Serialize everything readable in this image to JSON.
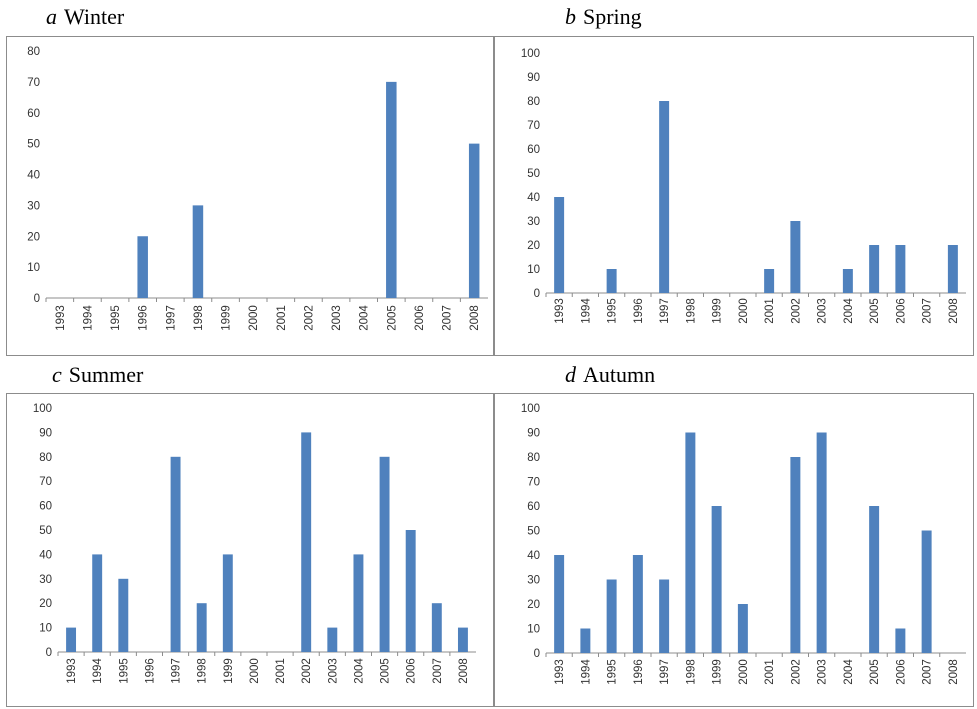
{
  "chart_data": [
    {
      "type": "bar",
      "panel_letter": "a",
      "title": "Winter",
      "categories": [
        "1993",
        "1994",
        "1995",
        "1996",
        "1997",
        "1998",
        "1999",
        "2000",
        "2001",
        "2002",
        "2003",
        "2004",
        "2005",
        "2006",
        "2007",
        "2008"
      ],
      "values": [
        0,
        0,
        0,
        20,
        0,
        30,
        0,
        0,
        0,
        0,
        0,
        0,
        70,
        0,
        0,
        50
      ],
      "ylim": [
        0,
        80
      ],
      "yticks": [
        0,
        10,
        20,
        30,
        40,
        50,
        60,
        70,
        80
      ],
      "grid": false,
      "bar_color": "#4f81bd"
    },
    {
      "type": "bar",
      "panel_letter": "b",
      "title": "Spring",
      "categories": [
        "1993",
        "1994",
        "1995",
        "1996",
        "1997",
        "1998",
        "1999",
        "2000",
        "2001",
        "2002",
        "2003",
        "2004",
        "2005",
        "2006",
        "2007",
        "2008"
      ],
      "values": [
        40,
        0,
        10,
        0,
        80,
        0,
        0,
        0,
        10,
        30,
        0,
        10,
        20,
        20,
        0,
        20
      ],
      "ylim": [
        0,
        100
      ],
      "yticks": [
        0,
        10,
        20,
        30,
        40,
        50,
        60,
        70,
        80,
        90,
        100
      ],
      "grid": false,
      "bar_color": "#4f81bd"
    },
    {
      "type": "bar",
      "panel_letter": "c",
      "title": "Summer",
      "categories": [
        "1993",
        "1994",
        "1995",
        "1996",
        "1997",
        "1998",
        "1999",
        "2000",
        "2001",
        "2002",
        "2003",
        "2004",
        "2005",
        "2006",
        "2007",
        "2008"
      ],
      "values": [
        10,
        40,
        30,
        0,
        80,
        20,
        40,
        0,
        0,
        90,
        10,
        40,
        80,
        50,
        20,
        10
      ],
      "ylim": [
        0,
        100
      ],
      "yticks": [
        0,
        10,
        20,
        30,
        40,
        50,
        60,
        70,
        80,
        90,
        100
      ],
      "grid": false,
      "bar_color": "#4f81bd"
    },
    {
      "type": "bar",
      "panel_letter": "d",
      "title": "Autumn",
      "categories": [
        "1993",
        "1994",
        "1995",
        "1996",
        "1997",
        "1998",
        "1999",
        "2000",
        "2001",
        "2002",
        "2003",
        "2004",
        "2005",
        "2006",
        "2007",
        "2008"
      ],
      "values": [
        40,
        10,
        30,
        40,
        30,
        90,
        60,
        20,
        0,
        80,
        90,
        0,
        60,
        10,
        50,
        0
      ],
      "ylim": [
        0,
        100
      ],
      "yticks": [
        0,
        10,
        20,
        30,
        40,
        50,
        60,
        70,
        80,
        90,
        100
      ],
      "grid": false,
      "bar_color": "#4f81bd"
    }
  ]
}
